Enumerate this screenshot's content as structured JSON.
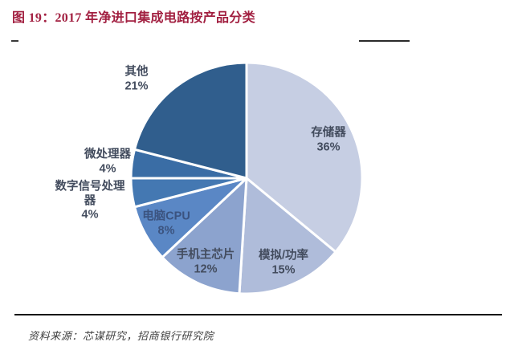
{
  "figure": {
    "title": "图 19：2017 年净进口集成电路按产品分类",
    "source": "资料来源：芯谋研究，招商银行研究院",
    "title_color": "#a22041"
  },
  "chart_data": {
    "type": "pie",
    "title": "2017 年净进口集成电路按产品分类",
    "unit": "percent",
    "start_angle_deg": 0,
    "direction": "clockwise",
    "legend_position": "none",
    "slices": [
      {
        "label": "存储器",
        "value": 36,
        "pct_label": "36%",
        "color": "#c6cee3"
      },
      {
        "label": "模拟/功率",
        "value": 15,
        "pct_label": "15%",
        "color": "#afbcda"
      },
      {
        "label": "手机主芯片",
        "value": 12,
        "pct_label": "12%",
        "color": "#8ca3ce"
      },
      {
        "label": "电脑CPU",
        "value": 8,
        "pct_label": "8%",
        "color": "#5a87c5"
      },
      {
        "label": "数字信号处理器",
        "value": 4,
        "pct_label": "4%",
        "color": "#4478b2"
      },
      {
        "label": "微处理器",
        "value": 4,
        "pct_label": "4%",
        "color": "#3a6da5"
      },
      {
        "label": "其他",
        "value": 21,
        "pct_label": "21%",
        "color": "#305e8d"
      }
    ]
  }
}
